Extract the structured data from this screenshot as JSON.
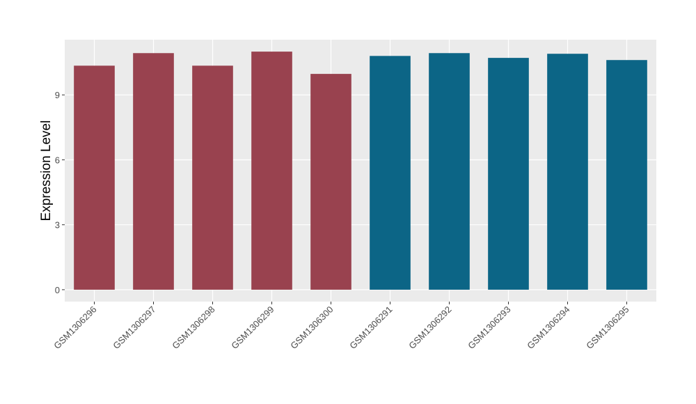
{
  "chart_data": {
    "type": "bar",
    "y_label": "Expression Level",
    "categories": [
      "GSM1306296",
      "GSM1306297",
      "GSM1306298",
      "GSM1306299",
      "GSM1306300",
      "GSM1306291",
      "GSM1306292",
      "GSM1306293",
      "GSM1306294",
      "GSM1306295"
    ],
    "values": [
      10.35,
      10.93,
      10.35,
      11.0,
      9.97,
      10.8,
      10.93,
      10.71,
      10.9,
      10.61
    ],
    "colors": [
      "#99424f",
      "#99424f",
      "#99424f",
      "#99424f",
      "#99424f",
      "#0c6586",
      "#0c6586",
      "#0c6586",
      "#0c6586",
      "#0c6586"
    ],
    "ylim": [
      -0.55,
      11.55
    ],
    "yticks": [
      0,
      3,
      6,
      9
    ],
    "grid": true
  }
}
